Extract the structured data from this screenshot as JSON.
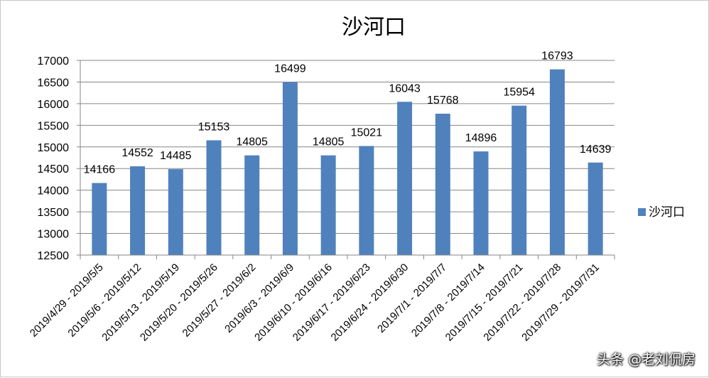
{
  "chart_data": {
    "type": "bar",
    "title": "沙河口",
    "xlabel": "",
    "ylabel": "",
    "categories": [
      "2019/4/29 - 2019/5/5",
      "2019/5/6 - 2019/5/12",
      "2019/5/13 - 2019/5/19",
      "2019/5/20 - 2019/5/26",
      "2019/5/27 - 2019/6/2",
      "2019/6/3 - 2019/6/9",
      "2019/6/10 - 2019/6/16",
      "2019/6/17 - 2019/6/23",
      "2019/6/24 - 2019/6/30",
      "2019/7/1 - 2019/7/7",
      "2019/7/8 - 2019/7/14",
      "2019/7/15 - 2019/7/21",
      "2019/7/22 - 2019/7/28",
      "2019/7/29 - 2019/7/31"
    ],
    "series": [
      {
        "name": "沙河口",
        "values": [
          14166,
          14552,
          14485,
          15153,
          14805,
          16499,
          14805,
          15021,
          16043,
          15768,
          14896,
          15954,
          16793,
          14639
        ]
      }
    ],
    "ylim": [
      12500,
      17000
    ],
    "yticks": [
      12500,
      13000,
      13500,
      14000,
      14500,
      15000,
      15500,
      16000,
      16500,
      17000
    ],
    "grid": true,
    "legend": "right",
    "colors": {
      "bar": "#4f81bd",
      "grid": "#868686",
      "axis": "#868686"
    }
  },
  "watermark": "头条 @老刘侃房"
}
